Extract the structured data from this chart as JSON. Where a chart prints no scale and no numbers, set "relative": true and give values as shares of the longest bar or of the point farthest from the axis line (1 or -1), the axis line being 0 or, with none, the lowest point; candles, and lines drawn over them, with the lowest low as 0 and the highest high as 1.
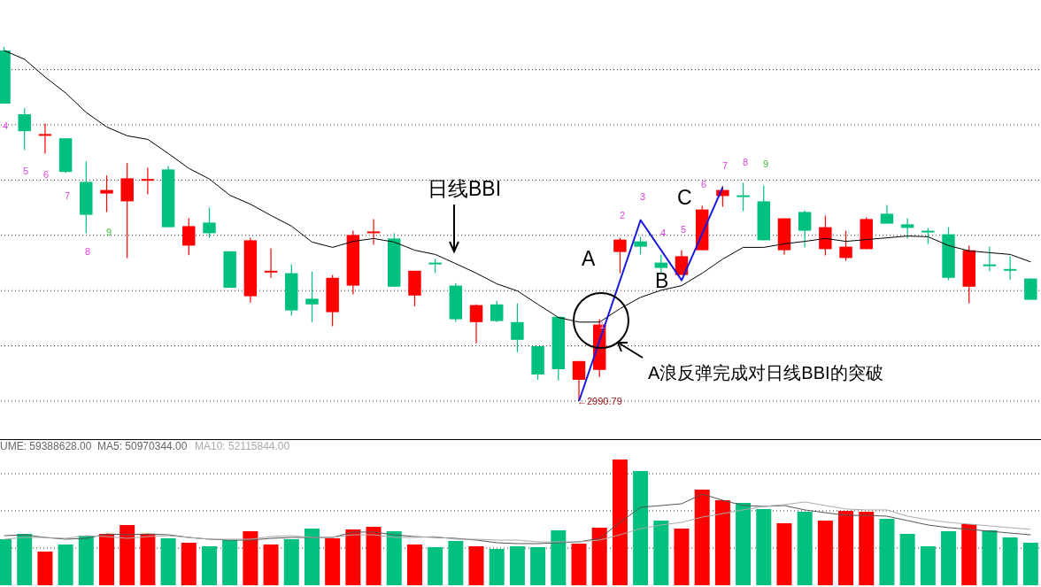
{
  "chart_data": [
    {
      "type": "candlestick",
      "relative": true,
      "grid": true,
      "tick_labels": false,
      "categories": [
        null,
        null,
        null,
        null,
        null,
        null,
        null,
        null,
        null,
        null,
        null,
        null,
        null,
        null,
        null,
        null,
        null,
        null,
        null,
        null,
        null,
        null,
        null,
        null,
        null,
        null,
        null,
        null,
        null,
        null,
        null,
        null,
        null,
        null,
        null,
        null,
        null,
        null,
        null,
        null,
        null,
        null,
        null,
        null,
        null,
        null,
        null,
        null,
        null,
        null,
        null
      ],
      "annotations": [
        "日线BBI",
        "A",
        "B",
        "C",
        "A浪反弹完成对日线BBI的突破",
        "←2990.79",
        "4",
        "5",
        "6",
        "7",
        "8",
        "9",
        "1",
        "2",
        "3",
        "4",
        "5",
        "6",
        "7",
        "8",
        "9"
      ],
      "ohlc": [
        [
          0.99,
          1,
          0.84,
          0.84
        ],
        [
          0.81,
          0.827,
          0.709,
          0.762
        ],
        [
          0.749,
          0.784,
          0.699,
          0.754
        ],
        [
          0.742,
          0.742,
          0.644,
          0.647
        ],
        [
          0.619,
          0.677,
          0.474,
          0.526
        ],
        [
          0.586,
          0.637,
          0.534,
          0.596
        ],
        [
          0.564,
          0.672,
          0.404,
          0.629
        ],
        [
          0.624,
          0.659,
          0.584,
          0.627
        ],
        [
          0.654,
          0.664,
          0.491,
          0.491
        ],
        [
          0.439,
          0.516,
          0.412,
          0.494
        ],
        [
          0.504,
          0.546,
          0.461,
          0.474
        ],
        [
          0.423,
          0.423,
          0.32,
          0.32
        ],
        [
          0.296,
          0.461,
          0.278,
          0.454
        ],
        [
          0.366,
          0.431,
          0.348,
          0.368
        ],
        [
          0.361,
          0.386,
          0.241,
          0.256
        ],
        [
          0.289,
          0.366,
          0.223,
          0.273
        ],
        [
          0.251,
          0.356,
          0.211,
          0.348
        ],
        [
          0.326,
          0.481,
          0.301,
          0.469
        ],
        [
          0.476,
          0.514,
          0.441,
          0.479
        ],
        [
          0.459,
          0.474,
          0.323,
          0.323
        ],
        [
          0.298,
          0.368,
          0.268,
          0.368
        ],
        [
          0.391,
          0.401,
          0.361,
          0.388
        ],
        [
          0.326,
          0.333,
          0.223,
          0.231
        ],
        [
          0.223,
          0.273,
          0.163,
          0.271
        ],
        [
          0.273,
          0.283,
          0.223,
          0.226
        ],
        [
          0.223,
          0.276,
          0.138,
          0.173
        ],
        [
          0.155,
          0.155,
          0.06,
          0.075
        ],
        [
          0.238,
          0.238,
          0.058,
          0.09
        ],
        [
          0.06,
          0.113,
          0,
          0.113
        ],
        [
          0.088,
          0.231,
          0.068,
          0.216
        ],
        [
          0.421,
          0.461,
          0.361,
          0.456
        ],
        [
          0.451,
          0.464,
          0.414,
          0.436
        ],
        [
          0.391,
          0.414,
          0.361,
          0.376
        ],
        [
          0.356,
          0.426,
          0.356,
          0.409
        ],
        [
          0.426,
          0.551,
          0.426,
          0.541
        ],
        [
          0.579,
          0.607,
          0.549,
          0.596
        ],
        [
          0.581,
          0.617,
          0.536,
          0.578
        ],
        [
          0.564,
          0.609,
          0.454,
          0.454
        ],
        [
          0.426,
          0.516,
          0.414,
          0.516
        ],
        [
          0.534,
          0.539,
          0.434,
          0.481
        ],
        [
          0.429,
          0.524,
          0.411,
          0.491
        ],
        [
          0.404,
          0.481,
          0.396,
          0.436
        ],
        [
          0.429,
          0.519,
          0.429,
          0.514
        ],
        [
          0.529,
          0.554,
          0.501,
          0.501
        ],
        [
          0.499,
          0.516,
          0.459,
          0.489
        ],
        [
          0.481,
          0.489,
          0.444,
          0.479
        ],
        [
          0.471,
          0.491,
          0.341,
          0.348
        ],
        [
          0.323,
          0.439,
          0.276,
          0.426
        ],
        [
          0.386,
          0.436,
          0.366,
          0.383
        ],
        [
          0.373,
          0.409,
          0.343,
          0.371
        ],
        [
          0.346,
          0.346,
          0.286,
          0.286
        ]
      ],
      "colors": [
        "#00c080",
        "#00c080",
        "#ff0000",
        "#00c080",
        "#00c080",
        "#ff0000",
        "#ff0000",
        "#ff0000",
        "#00c080",
        "#ff0000",
        "#00c080",
        "#00c080",
        "#ff0000",
        "#ff0000",
        "#00c080",
        "#00c080",
        "#ff0000",
        "#ff0000",
        "#ff0000",
        "#00c080",
        "#ff0000",
        "#00c080",
        "#00c080",
        "#ff0000",
        "#00c080",
        "#00c080",
        "#00c080",
        "#00c080",
        "#ff0000",
        "#ff0000",
        "#ff0000",
        "#00c080",
        "#00c080",
        "#ff0000",
        "#ff0000",
        "#ff0000",
        "#00c080",
        "#00c080",
        "#ff0000",
        "#00c080",
        "#ff0000",
        "#ff0000",
        "#ff0000",
        "#00c080",
        "#00c080",
        "#00c080",
        "#00c080",
        "#ff0000",
        "#00c080",
        "#00c080",
        "#00c080"
      ],
      "series": [
        {
          "type": "line",
          "color": "#000000",
          "values": [
            0.99,
            0.965,
            0.915,
            0.87,
            0.815,
            0.774,
            0.749,
            0.739,
            0.699,
            0.657,
            0.627,
            0.581,
            0.556,
            0.524,
            0.494,
            0.449,
            0.434,
            0.451,
            0.459,
            0.449,
            0.426,
            0.414,
            0.388,
            0.361,
            0.331,
            0.311,
            0.273,
            0.236,
            0.223,
            0.223,
            0.261,
            0.293,
            0.313,
            0.326,
            0.361,
            0.401,
            0.434,
            0.434,
            0.444,
            0.451,
            0.459,
            0.451,
            0.456,
            0.461,
            0.466,
            0.464,
            0.439,
            0.424,
            0.419,
            0.414,
            0.393
          ]
        },
        {
          "type": "line",
          "color": "#1a1adc",
          "values": [
            null,
            null,
            null,
            null,
            null,
            null,
            null,
            null,
            null,
            null,
            null,
            null,
            null,
            null,
            null,
            null,
            null,
            null,
            null,
            null,
            null,
            null,
            null,
            null,
            null,
            null,
            null,
            null,
            0,
            null,
            null,
            0.511,
            null,
            0.341,
            null,
            0.604,
            null,
            null,
            null,
            null,
            null,
            null,
            null,
            null,
            null,
            null,
            null,
            null,
            null,
            null,
            null
          ]
        }
      ]
    },
    {
      "type": "bar",
      "relative": true,
      "grid": true,
      "tick_labels": false,
      "categories": [
        null,
        null,
        null,
        null,
        null,
        null,
        null,
        null,
        null,
        null,
        null,
        null,
        null,
        null,
        null,
        null,
        null,
        null,
        null,
        null,
        null,
        null,
        null,
        null,
        null,
        null,
        null,
        null,
        null,
        null,
        null,
        null,
        null,
        null,
        null,
        null,
        null,
        null,
        null,
        null,
        null,
        null,
        null,
        null,
        null,
        null,
        null,
        null,
        null,
        null,
        null
      ],
      "annotations": [
        "UME: 59388628.00",
        "MA5: 50970344.00",
        "MA10: 52115844.00"
      ],
      "series": [
        {
          "type": "bar",
          "values": [
            0.366,
            0.408,
            0.268,
            0.324,
            0.394,
            0.408,
            0.479,
            0.408,
            0.373,
            0.338,
            0.31,
            0.359,
            0.43,
            0.324,
            0.366,
            0.451,
            0.373,
            0.444,
            0.465,
            0.43,
            0.324,
            0.303,
            0.352,
            0.31,
            0.289,
            0.31,
            0.303,
            0.437,
            0.331,
            0.458,
            1,
            0.908,
            0.514,
            0.451,
            0.761,
            0.676,
            0.655,
            0.606,
            0.493,
            0.585,
            0.514,
            0.592,
            0.585,
            0.528,
            0.408,
            0.31,
            0.43,
            0.486,
            0.437,
            0.38,
            0.338
          ],
          "colors": [
            "#00c080",
            "#00c080",
            "#ff0000",
            "#00c080",
            "#00c080",
            "#ff0000",
            "#ff0000",
            "#ff0000",
            "#00c080",
            "#ff0000",
            "#00c080",
            "#00c080",
            "#ff0000",
            "#ff0000",
            "#00c080",
            "#00c080",
            "#ff0000",
            "#ff0000",
            "#ff0000",
            "#00c080",
            "#ff0000",
            "#00c080",
            "#00c080",
            "#ff0000",
            "#00c080",
            "#00c080",
            "#00c080",
            "#00c080",
            "#ff0000",
            "#ff0000",
            "#ff0000",
            "#00c080",
            "#00c080",
            "#ff0000",
            "#ff0000",
            "#ff0000",
            "#00c080",
            "#00c080",
            "#ff0000",
            "#00c080",
            "#ff0000",
            "#ff0000",
            "#ff0000",
            "#00c080",
            "#00c080",
            "#00c080",
            "#00c080",
            "#ff0000",
            "#00c080",
            "#00c080",
            "#00c080"
          ]
        },
        {
          "type": "line",
          "color": "#555555",
          "values": [
            0.394,
            0.401,
            0.38,
            0.366,
            0.373,
            0.408,
            0.401,
            0.408,
            0.401,
            0.38,
            0.366,
            0.359,
            0.359,
            0.373,
            0.38,
            0.38,
            0.38,
            0.423,
            0.423,
            0.401,
            0.387,
            0.38,
            0.373,
            0.359,
            0.338,
            0.331,
            0.331,
            0.338,
            0.345,
            0.373,
            0.5,
            0.62,
            0.634,
            0.648,
            0.725,
            0.676,
            0.634,
            0.627,
            0.634,
            0.599,
            0.577,
            0.556,
            0.556,
            0.549,
            0.514,
            0.479,
            0.458,
            0.444,
            0.43,
            0.415,
            0.401
          ]
        },
        {
          "type": "line",
          "color": "#aaaaaa",
          "values": [
            0.366,
            0.38,
            0.38,
            0.373,
            0.394,
            0.387,
            0.373,
            0.387,
            0.394,
            0.38,
            0.366,
            0.366,
            0.366,
            0.387,
            0.394,
            0.38,
            0.38,
            0.401,
            0.401,
            0.38,
            0.38,
            0.387,
            0.366,
            0.366,
            0.359,
            0.359,
            0.345,
            0.345,
            0.345,
            0.359,
            0.401,
            0.451,
            0.479,
            0.5,
            0.542,
            0.57,
            0.599,
            0.627,
            0.641,
            0.662,
            0.634,
            0.606,
            0.599,
            0.599,
            0.549,
            0.521,
            0.5,
            0.486,
            0.472,
            0.458,
            0.444
          ]
        }
      ]
    }
  ]
}
